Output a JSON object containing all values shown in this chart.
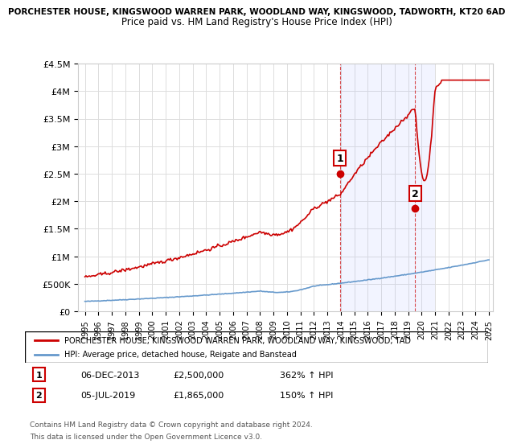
{
  "title_line1": "PORCHESTER HOUSE, KINGSWOOD WARREN PARK, WOODLAND WAY, KINGSWOOD, TADWORTH, KT20 6AD",
  "title_line2": "Price paid vs. HM Land Registry's House Price Index (HPI)",
  "ylim": [
    0,
    4500000
  ],
  "yticks": [
    0,
    500000,
    1000000,
    1500000,
    2000000,
    2500000,
    3000000,
    3500000,
    4000000,
    4500000
  ],
  "ytick_labels": [
    "£0",
    "£500K",
    "£1M",
    "£1.5M",
    "£2M",
    "£2.5M",
    "£3M",
    "£3.5M",
    "£4M",
    "£4.5M"
  ],
  "xmin_year": 1995,
  "xmax_year": 2025,
  "xticks": [
    1995,
    1996,
    1997,
    1998,
    1999,
    2000,
    2001,
    2002,
    2003,
    2004,
    2005,
    2006,
    2007,
    2008,
    2009,
    2010,
    2011,
    2012,
    2013,
    2014,
    2015,
    2016,
    2017,
    2018,
    2019,
    2020,
    2021,
    2022,
    2023,
    2024,
    2025
  ],
  "sale1_x": 2013.92,
  "sale1_y": 2500000,
  "sale1_label": "1",
  "sale1_date": "06-DEC-2013",
  "sale1_price": "£2,500,000",
  "sale1_hpi": "362% ↑ HPI",
  "sale2_x": 2019.5,
  "sale2_y": 1865000,
  "sale2_label": "2",
  "sale2_date": "05-JUL-2019",
  "sale2_price": "£1,865,000",
  "sale2_hpi": "150% ↑ HPI",
  "highlight_xmin": 2013.92,
  "highlight_xmax": 2021.0,
  "property_line_color": "#cc0000",
  "hpi_line_color": "#6699cc",
  "annotation_box_color": "#ffcccc",
  "legend_label1": "PORCHESTER HOUSE, KINGSWOOD WARREN PARK, WOODLAND WAY, KINGSWOOD, TAD",
  "legend_label2": "HPI: Average price, detached house, Reigate and Banstead",
  "footer1": "Contains HM Land Registry data © Crown copyright and database right 2024.",
  "footer2": "This data is licensed under the Open Government Licence v3.0."
}
